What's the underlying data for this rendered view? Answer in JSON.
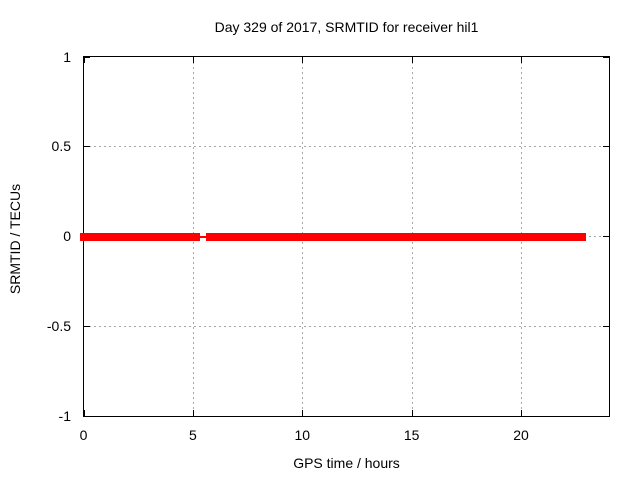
{
  "chart_data": {
    "type": "scatter",
    "title": "Day 329 of 2017, SRMTID for receiver hil1",
    "xlabel": "GPS time / hours",
    "ylabel": "SRMTID / TECUs",
    "xlim": [
      0,
      24
    ],
    "ylim": [
      -1,
      1
    ],
    "xticks": {
      "values": [
        0,
        5,
        10,
        15,
        20
      ],
      "labels": [
        "0",
        "5",
        "10",
        "15",
        "20"
      ]
    },
    "yticks": {
      "values": [
        1,
        0.5,
        0,
        -0.5,
        -1
      ],
      "labels": [
        "1",
        "0.5",
        "0",
        "-0.5",
        "-1"
      ]
    },
    "grid": true,
    "legend": "none",
    "marker": "plus",
    "series": [
      {
        "name": "SRMTID",
        "color": "#ff0000",
        "description": "Dense point markers all at y = 0 TECUs from 0 h to about 22.8 h, with a sparse data gap between about 5.1 h and 5.8 h",
        "segments": [
          {
            "x0": 0,
            "x1": 5.1,
            "y": 0,
            "density": "dense"
          },
          {
            "x0": 5.1,
            "x1": 5.8,
            "y": 0,
            "density": "sparse"
          },
          {
            "x0": 5.85,
            "x1": 22.75,
            "y": 0,
            "density": "dense"
          }
        ],
        "isolated_points": [
          {
            "x": 5.62,
            "y": 0
          }
        ]
      }
    ],
    "colors": {
      "background": "#ffffff",
      "axis": "#000000",
      "text": "#000000",
      "grid": "#a8a8a8",
      "data": "#ff0000"
    }
  }
}
